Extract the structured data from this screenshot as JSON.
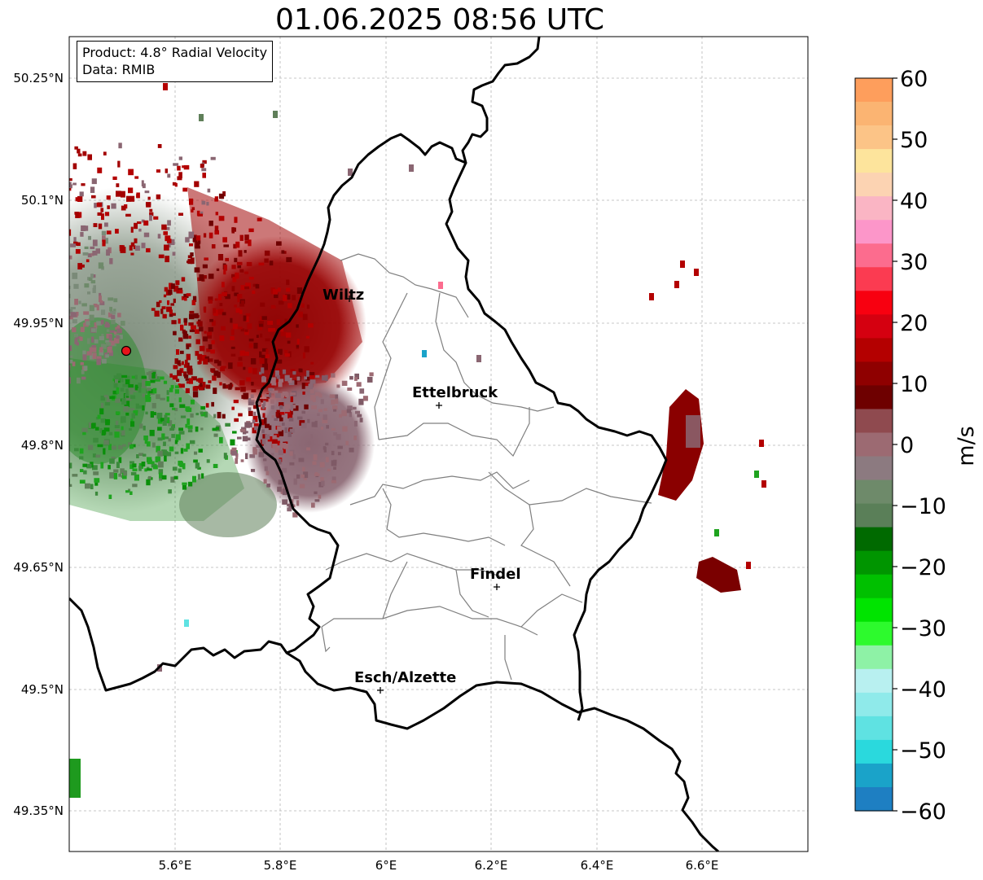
{
  "title": "01.06.2025 08:56 UTC",
  "info": {
    "product": "Product: 4.8° Radial Velocity",
    "data_source": "Data: RMIB"
  },
  "map": {
    "lat_ticks": [
      "50.25°N",
      "50.1°N",
      "49.95°N",
      "49.8°N",
      "49.65°N",
      "49.5°N",
      "49.35°N"
    ],
    "lon_ticks": [
      "5.6°E",
      "5.8°E",
      "6°E",
      "6.2°E",
      "6.4°E",
      "6.6°E"
    ],
    "cities": [
      {
        "name": "Wiltz"
      },
      {
        "name": "Ettelbruck"
      },
      {
        "name": "Findel"
      },
      {
        "name": "Esch/Alzette"
      }
    ],
    "radar_marker_color": "#e8141b",
    "border_color": "#000000",
    "district_color": "#7f7f7f"
  },
  "colorbar": {
    "unit": "m/s",
    "ticks": [
      "60",
      "50",
      "40",
      "30",
      "20",
      "10",
      "0",
      "−10",
      "−20",
      "−30",
      "−40",
      "−50",
      "−60"
    ],
    "colors_top_to_bottom": [
      "#fe9e5c",
      "#fbb472",
      "#fcc487",
      "#fde49c",
      "#fcd3b2",
      "#fab5c4",
      "#fc96c9",
      "#fc6c8e",
      "#fb3b51",
      "#f80010",
      "#d50010",
      "#b40000",
      "#8f0000",
      "#6e0000",
      "#8f4a4f",
      "#9c6a72",
      "#8c7a80",
      "#6e8a6a",
      "#5a7f58",
      "#006a00",
      "#009500",
      "#00c000",
      "#00e400",
      "#2dfa2d",
      "#8ef2a6",
      "#b8f0f0",
      "#8feaea",
      "#5fe2e2",
      "#2ad9dd",
      "#1aa3c9",
      "#1e7fc2"
    ]
  }
}
